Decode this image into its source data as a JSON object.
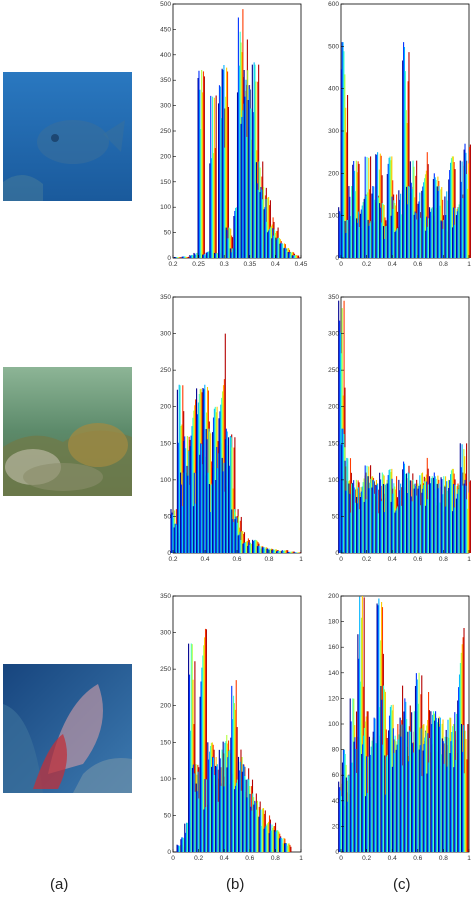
{
  "captions": {
    "a": "(a)",
    "b": "(b)",
    "c": "(c)"
  },
  "palette": [
    "#00008f",
    "#0030ff",
    "#00b4ff",
    "#3cffc8",
    "#b4ff3c",
    "#ffc800",
    "#ff3c00",
    "#b40000"
  ],
  "images": [
    {
      "name": "fish",
      "water": "#1b5fa8",
      "water_light": "#2c7cc4"
    },
    {
      "name": "reef",
      "water": "#5f8f6a",
      "water_light": "#8fb08a"
    },
    {
      "name": "sea-fan",
      "water": "#1a4f8a",
      "water_light": "#3b78b3"
    }
  ],
  "chart_data": [
    {
      "type": "bar",
      "row": 1,
      "column": "b",
      "xlim": [
        0.2,
        0.45
      ],
      "ylim": [
        0,
        500
      ],
      "xticks": [
        "0.2",
        "0.25",
        "0.3",
        "0.35",
        "0.4",
        "0.45"
      ],
      "yticks": [
        "0",
        "50",
        "100",
        "150",
        "200",
        "250",
        "300",
        "350",
        "400",
        "450",
        "500"
      ],
      "x": [
        0.21,
        0.225,
        0.24,
        0.248,
        0.256,
        0.265,
        0.272,
        0.279,
        0.288,
        0.296,
        0.303,
        0.311,
        0.319,
        0.326,
        0.333,
        0.34,
        0.346,
        0.354,
        0.362,
        0.37,
        0.377,
        0.385,
        0.392,
        0.4,
        0.408,
        0.416,
        0.424,
        0.432,
        0.44
      ],
      "values": [
        2,
        3,
        6,
        10,
        370,
        8,
        15,
        320,
        10,
        340,
        380,
        60,
        20,
        100,
        490,
        430,
        370,
        340,
        385,
        190,
        140,
        120,
        80,
        60,
        40,
        30,
        20,
        12,
        6
      ]
    },
    {
      "type": "bar",
      "row": 1,
      "column": "c",
      "xlim": [
        0,
        1
      ],
      "ylim": [
        0,
        600
      ],
      "xticks": [
        "0",
        "0.2",
        "0.4",
        "0.6",
        "0.8",
        "1"
      ],
      "yticks": [
        "0",
        "100",
        "200",
        "300",
        "400",
        "500",
        "600"
      ],
      "x": [
        0.01,
        0.03,
        0.06,
        0.09,
        0.12,
        0.15,
        0.18,
        0.21,
        0.24,
        0.27,
        0.3,
        0.33,
        0.36,
        0.39,
        0.42,
        0.45,
        0.48,
        0.51,
        0.54,
        0.57,
        0.6,
        0.63,
        0.66,
        0.69,
        0.72,
        0.75,
        0.78,
        0.81,
        0.84,
        0.87,
        0.9,
        0.93,
        0.96,
        0.99
      ],
      "values": [
        120,
        510,
        90,
        170,
        230,
        110,
        150,
        240,
        90,
        170,
        250,
        130,
        80,
        240,
        150,
        100,
        160,
        510,
        170,
        230,
        110,
        160,
        250,
        100,
        120,
        200,
        170,
        90,
        160,
        240,
        120,
        150,
        230,
        270
      ]
    },
    {
      "type": "bar",
      "row": 2,
      "column": "b",
      "xlim": [
        0.2,
        1
      ],
      "ylim": [
        0,
        350
      ],
      "xticks": [
        "0.2",
        "0.4",
        "0.6",
        "0.8",
        "1"
      ],
      "yticks": [
        "0",
        "50",
        "100",
        "150",
        "200",
        "250",
        "300",
        "350"
      ],
      "x": [
        0.21,
        0.23,
        0.25,
        0.27,
        0.29,
        0.31,
        0.33,
        0.35,
        0.37,
        0.39,
        0.41,
        0.43,
        0.45,
        0.47,
        0.49,
        0.51,
        0.53,
        0.55,
        0.57,
        0.59,
        0.61,
        0.63,
        0.66,
        0.69,
        0.72,
        0.75,
        0.78,
        0.81,
        0.84,
        0.87,
        0.9,
        0.94,
        0.98
      ],
      "values": [
        60,
        40,
        230,
        110,
        160,
        140,
        210,
        110,
        225,
        150,
        230,
        170,
        100,
        200,
        150,
        300,
        130,
        170,
        160,
        60,
        50,
        30,
        20,
        15,
        18,
        10,
        8,
        6,
        5,
        3,
        4,
        2,
        1
      ]
    },
    {
      "type": "bar",
      "row": 2,
      "column": "c",
      "xlim": [
        0,
        1
      ],
      "ylim": [
        0,
        350
      ],
      "xticks": [
        "0",
        "0.2",
        "0.4",
        "0.6",
        "0.8",
        "1"
      ],
      "yticks": [
        "0",
        "50",
        "100",
        "150",
        "200",
        "250",
        "300",
        "350"
      ],
      "x": [
        0.01,
        0.03,
        0.06,
        0.09,
        0.12,
        0.15,
        0.18,
        0.21,
        0.24,
        0.27,
        0.3,
        0.33,
        0.36,
        0.39,
        0.42,
        0.45,
        0.48,
        0.51,
        0.54,
        0.57,
        0.6,
        0.63,
        0.66,
        0.69,
        0.72,
        0.75,
        0.78,
        0.81,
        0.84,
        0.87,
        0.9,
        0.93,
        0.96,
        0.99
      ],
      "values": [
        345,
        170,
        130,
        95,
        100,
        90,
        110,
        120,
        105,
        100,
        95,
        110,
        100,
        115,
        105,
        90,
        100,
        125,
        110,
        100,
        95,
        110,
        130,
        100,
        105,
        110,
        95,
        105,
        100,
        115,
        95,
        110,
        150,
        100
      ]
    },
    {
      "type": "bar",
      "row": 3,
      "column": "b",
      "xlim": [
        0,
        1
      ],
      "ylim": [
        0,
        350
      ],
      "xticks": [
        "0",
        "0.2",
        "0.4",
        "0.6",
        "0.8",
        "1"
      ],
      "yticks": [
        "0",
        "50",
        "100",
        "150",
        "200",
        "250",
        "300",
        "350"
      ],
      "x": [
        0.06,
        0.09,
        0.12,
        0.15,
        0.18,
        0.21,
        0.24,
        0.27,
        0.3,
        0.33,
        0.36,
        0.39,
        0.42,
        0.45,
        0.48,
        0.51,
        0.54,
        0.57,
        0.6,
        0.63,
        0.66,
        0.7,
        0.74,
        0.78,
        0.82,
        0.86,
        0.9
      ],
      "values": [
        10,
        20,
        40,
        285,
        120,
        110,
        305,
        100,
        150,
        130,
        120,
        140,
        160,
        140,
        235,
        140,
        130,
        120,
        100,
        80,
        70,
        60,
        50,
        40,
        30,
        20,
        12
      ]
    },
    {
      "type": "bar",
      "row": 3,
      "column": "c",
      "xlim": [
        0,
        1
      ],
      "ylim": [
        0,
        200
      ],
      "xticks": [
        "0",
        "0.2",
        "0.4",
        "0.6",
        "0.8",
        "1"
      ],
      "yticks": [
        "0",
        "20",
        "40",
        "60",
        "80",
        "100",
        "120",
        "140",
        "160",
        "180",
        "200"
      ],
      "x": [
        0.01,
        0.04,
        0.07,
        0.1,
        0.13,
        0.16,
        0.19,
        0.22,
        0.25,
        0.28,
        0.31,
        0.34,
        0.37,
        0.4,
        0.43,
        0.46,
        0.49,
        0.52,
        0.55,
        0.58,
        0.61,
        0.64,
        0.67,
        0.7,
        0.73,
        0.76,
        0.79,
        0.82,
        0.85,
        0.88,
        0.91,
        0.94,
        0.97
      ],
      "values": [
        55,
        80,
        60,
        120,
        90,
        200,
        110,
        75,
        90,
        105,
        198,
        130,
        80,
        115,
        100,
        130,
        105,
        120,
        95,
        110,
        140,
        100,
        125,
        95,
        110,
        110,
        105,
        90,
        105,
        100,
        110,
        175,
        100
      ]
    }
  ]
}
